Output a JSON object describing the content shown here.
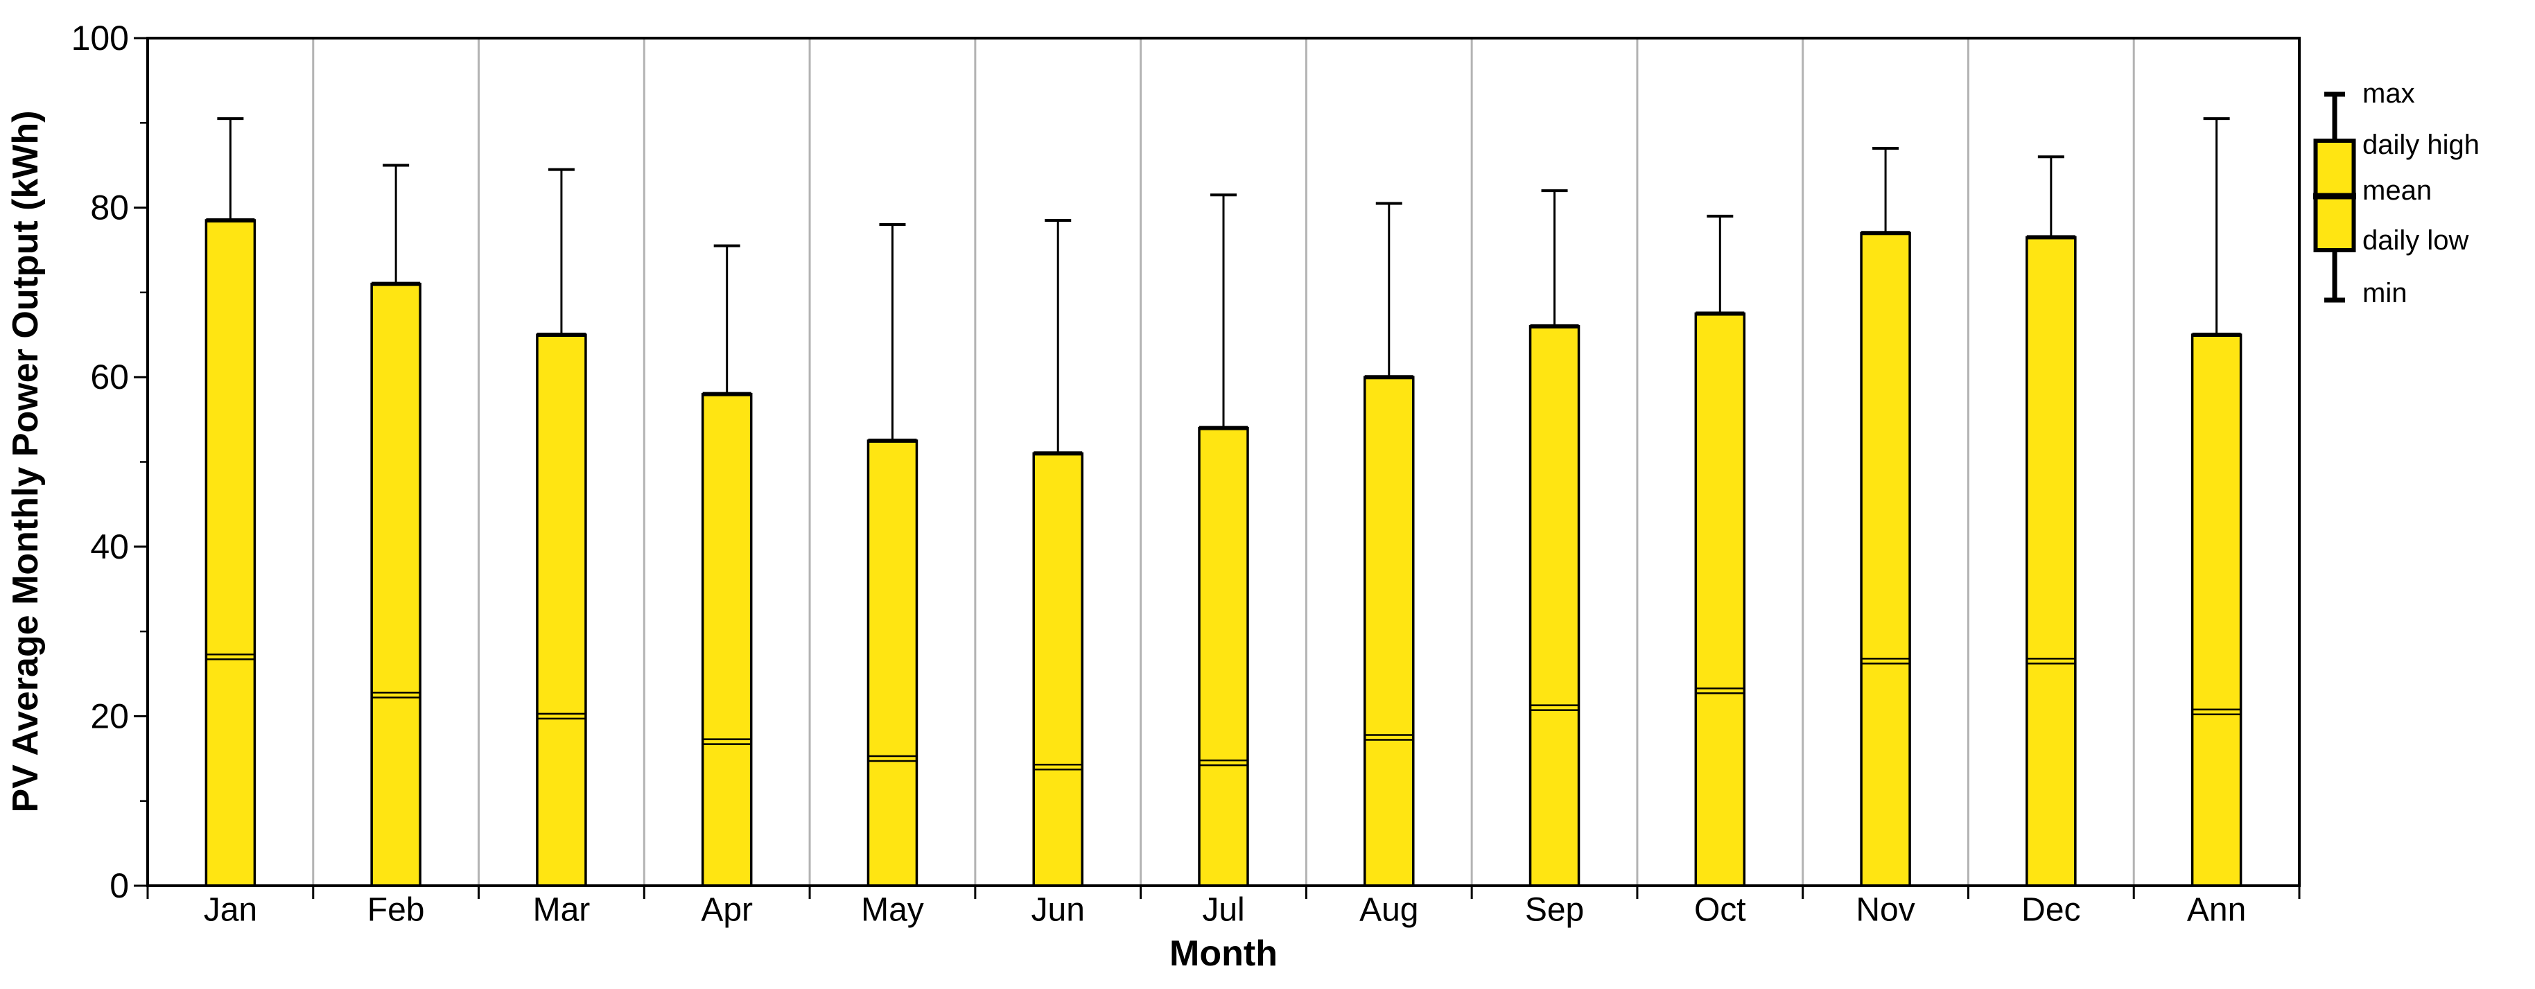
{
  "chart_data": {
    "type": "bar",
    "variant": "box-whisker-bars",
    "title": "",
    "xlabel": "Month",
    "ylabel": "PV Average Monthly Power Output (kWh)",
    "ylim": [
      0,
      100
    ],
    "y_major_ticks": [
      0,
      20,
      40,
      60,
      80,
      100
    ],
    "y_minor_ticks": [
      10,
      30,
      50,
      70,
      90
    ],
    "grid": "vertical-category-separators-only",
    "categories": [
      "Jan",
      "Feb",
      "Mar",
      "Apr",
      "May",
      "Jun",
      "Jul",
      "Aug",
      "Sep",
      "Oct",
      "Nov",
      "Dec",
      "Ann"
    ],
    "series": [
      {
        "name": "max",
        "values": [
          90.5,
          85,
          84.5,
          75.5,
          78,
          78.5,
          81.5,
          80.5,
          82,
          79,
          87,
          86,
          90.5
        ]
      },
      {
        "name": "daily high",
        "values": [
          78.5,
          71,
          65,
          58,
          52.5,
          51,
          54,
          60,
          66,
          67.5,
          77,
          76.5,
          65
        ]
      },
      {
        "name": "mean",
        "values": [
          27,
          22.5,
          20,
          17,
          15,
          14,
          14.5,
          17.5,
          21,
          23,
          26.5,
          26.5,
          20.5
        ]
      },
      {
        "name": "daily low",
        "values": [
          0,
          0,
          0,
          0,
          0,
          0,
          0,
          0,
          0,
          0,
          0,
          0,
          0
        ]
      },
      {
        "name": "min",
        "values": [
          0,
          0,
          0,
          0,
          0,
          0,
          0,
          0,
          0,
          0,
          0,
          0,
          0
        ]
      }
    ],
    "legend": {
      "position": "right",
      "entries": [
        "max",
        "daily high",
        "mean",
        "daily low",
        "min"
      ]
    },
    "colors": {
      "bar_fill": "#FFE512",
      "bar_border": "#000000",
      "whisker": "#000000",
      "separator": "#B3B3B3",
      "axis": "#000000",
      "background": "#FFFFFF"
    }
  }
}
